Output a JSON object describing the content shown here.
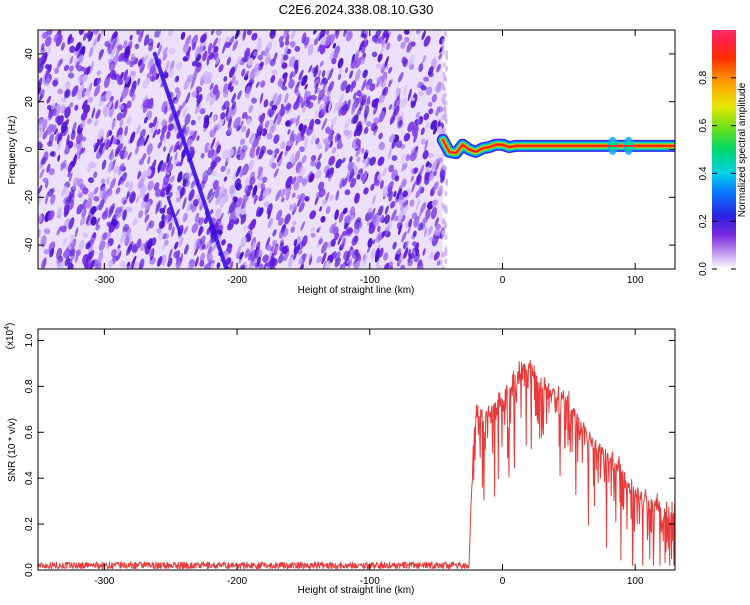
{
  "title": "C2E6.2024.338.08.10.G30",
  "chart_data": [
    {
      "type": "heatmap",
      "xlabel": "Height of straight line (km)",
      "ylabel": "Frequency (Hz)",
      "xlim": [
        -350,
        130
      ],
      "ylim": [
        -50,
        50
      ],
      "x_ticks": [
        -300,
        -200,
        -100,
        0,
        100
      ],
      "y_ticks": [
        -40,
        -20,
        0,
        20,
        40
      ],
      "noise_region_x": [
        -350,
        -45
      ],
      "signal_band": {
        "x_range": [
          -45,
          130
        ],
        "center_hz": 1.5,
        "width_hz": 3,
        "wobble_points": [
          [
            -45,
            4
          ],
          [
            -40,
            -1
          ],
          [
            -35,
            -1.5
          ],
          [
            -30,
            2
          ],
          [
            -25,
            0
          ],
          [
            -20,
            -1
          ],
          [
            -15,
            0.5
          ],
          [
            -10,
            1
          ],
          [
            -5,
            2
          ],
          [
            0,
            2
          ],
          [
            5,
            1
          ],
          [
            10,
            1.5
          ],
          [
            20,
            1.5
          ],
          [
            130,
            1.5
          ]
        ],
        "bright_spots": [
          83,
          95
        ]
      },
      "streaks": [
        {
          "x": [
            -262,
            -208
          ],
          "y": [
            40,
            -50
          ]
        },
        {
          "x": [
            -252,
            -243
          ],
          "y": [
            -20,
            -35
          ]
        }
      ],
      "colorbar": {
        "label": "Normalized spectral amplitude",
        "range": [
          0,
          1
        ],
        "ticks": [
          "0.0",
          "0.2",
          "0.4",
          "0.6",
          "0.8"
        ],
        "tick_values": [
          0,
          0.2,
          0.4,
          0.6,
          0.8
        ]
      }
    },
    {
      "type": "line",
      "xlabel": "Height of straight line (km)",
      "ylabel": "SNR (10 * v/v)",
      "y_multiplier_label": "(x10",
      "y_multiplier_exp": "4",
      "xlim": [
        -350,
        130
      ],
      "ylim": [
        0,
        1.05
      ],
      "x_ticks": [
        -300,
        -200,
        -100,
        0,
        100
      ],
      "y_ticks": [
        "0.0",
        "0.2",
        "0.4",
        "0.6",
        "0.8",
        "1.0"
      ],
      "y_tick_values": [
        0,
        0.2,
        0.4,
        0.6,
        0.8,
        1.0
      ],
      "series": [
        {
          "color": "#e83a3a",
          "baseline": 0.02,
          "onset_x": -25,
          "envelope": [
            [
              -350,
              0.02
            ],
            [
              -30,
              0.03
            ],
            [
              -25,
              0.1
            ],
            [
              -22,
              0.55
            ],
            [
              -20,
              0.7
            ],
            [
              -10,
              0.72
            ],
            [
              0,
              0.78
            ],
            [
              10,
              0.88
            ],
            [
              20,
              0.92
            ],
            [
              30,
              0.82
            ],
            [
              40,
              0.8
            ],
            [
              50,
              0.76
            ],
            [
              60,
              0.66
            ],
            [
              70,
              0.58
            ],
            [
              80,
              0.52
            ],
            [
              88,
              0.48
            ],
            [
              92,
              0.42
            ],
            [
              100,
              0.37
            ],
            [
              110,
              0.34
            ],
            [
              120,
              0.31
            ],
            [
              130,
              0.29
            ]
          ]
        }
      ]
    }
  ]
}
